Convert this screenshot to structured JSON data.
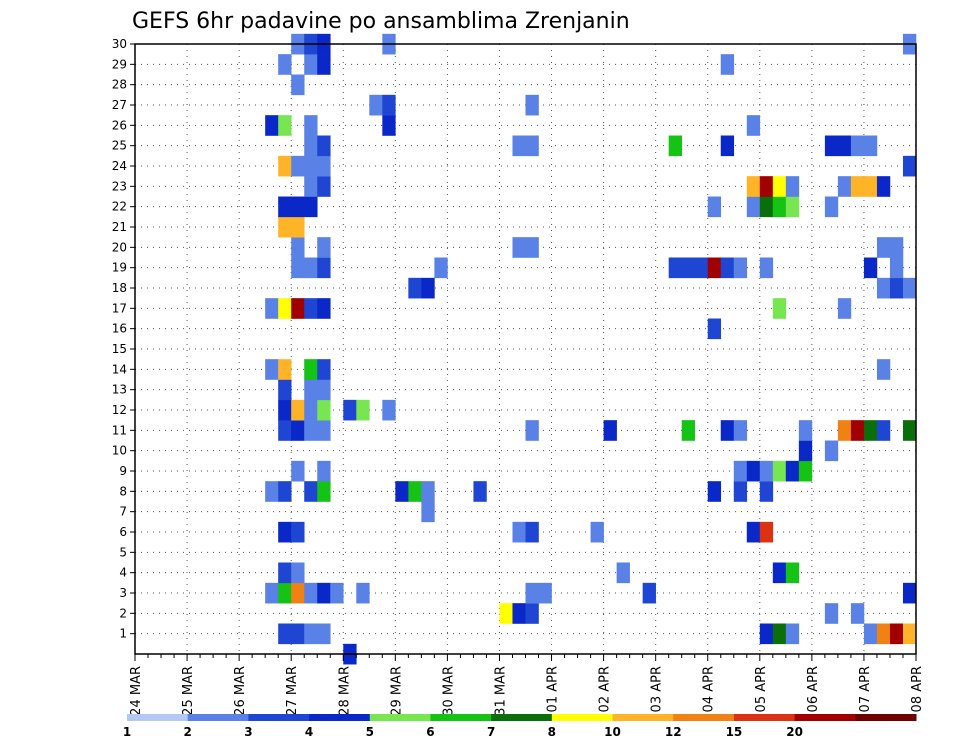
{
  "chart_data": {
    "type": "heatmap",
    "title": "GEFS 6hr padavine po ansamblima Zrenjanin",
    "xlabel": "",
    "ylabel": "",
    "y_ticks": [
      "1",
      "2",
      "3",
      "4",
      "5",
      "6",
      "7",
      "8",
      "9",
      "10",
      "11",
      "12",
      "13",
      "14",
      "15",
      "16",
      "17",
      "18",
      "19",
      "20",
      "21",
      "22",
      "23",
      "24",
      "25",
      "26",
      "27",
      "28",
      "29",
      "30"
    ],
    "x_ticks": [
      "24 MAR",
      "25 MAR",
      "26 MAR",
      "27 MAR",
      "28 MAR",
      "29 MAR",
      "30 MAR",
      "31 MAR",
      "01 APR",
      "02 APR",
      "03 APR",
      "04 APR",
      "05 APR",
      "06 APR",
      "07 APR",
      "08 APR"
    ],
    "time_steps": 60,
    "steps_per_day": 4,
    "xlim": [
      0,
      60
    ],
    "ylim": [
      0,
      30
    ],
    "color_levels": [
      "1",
      "2",
      "3",
      "4",
      "5",
      "6",
      "7",
      "8",
      "10",
      "12",
      "15",
      "20"
    ],
    "color_palette": [
      "#b4c8f5",
      "#5a82e6",
      "#1e46d2",
      "#0a28c8",
      "#78e650",
      "#14c314",
      "#0a6e0a",
      "#ffff00",
      "#ffb428",
      "#f08214",
      "#dc3214",
      "#a00000",
      "#6e0000"
    ],
    "cells": [
      {
        "m": 1,
        "t": 11,
        "c": 2
      },
      {
        "m": 1,
        "t": 12,
        "c": 2
      },
      {
        "m": 1,
        "t": 13,
        "c": 1
      },
      {
        "m": 1,
        "t": 14,
        "c": 1
      },
      {
        "m": 1,
        "t": 48,
        "c": 3
      },
      {
        "m": 1,
        "t": 49,
        "c": 6
      },
      {
        "m": 1,
        "t": 50,
        "c": 1
      },
      {
        "m": 1,
        "t": 56,
        "c": 1
      },
      {
        "m": 1,
        "t": 57,
        "c": 9
      },
      {
        "m": 1,
        "t": 58,
        "c": 11
      },
      {
        "m": 1,
        "t": 59,
        "c": 8
      },
      {
        "m": 2,
        "t": 28,
        "c": 7
      },
      {
        "m": 2,
        "t": 29,
        "c": 3
      },
      {
        "m": 2,
        "t": 30,
        "c": 2
      },
      {
        "m": 2,
        "t": 53,
        "c": 1
      },
      {
        "m": 2,
        "t": 55,
        "c": 1
      },
      {
        "m": 3,
        "t": 10,
        "c": 1
      },
      {
        "m": 3,
        "t": 11,
        "c": 5
      },
      {
        "m": 3,
        "t": 12,
        "c": 9
      },
      {
        "m": 3,
        "t": 13,
        "c": 1
      },
      {
        "m": 3,
        "t": 14,
        "c": 3
      },
      {
        "m": 3,
        "t": 15,
        "c": 1
      },
      {
        "m": 3,
        "t": 17,
        "c": 1
      },
      {
        "m": 3,
        "t": 30,
        "c": 1
      },
      {
        "m": 3,
        "t": 31,
        "c": 1
      },
      {
        "m": 3,
        "t": 39,
        "c": 2
      },
      {
        "m": 3,
        "t": 59,
        "c": 3
      },
      {
        "m": 4,
        "t": 11,
        "c": 2
      },
      {
        "m": 4,
        "t": 12,
        "c": 1
      },
      {
        "m": 4,
        "t": 37,
        "c": 1
      },
      {
        "m": 4,
        "t": 49,
        "c": 3
      },
      {
        "m": 4,
        "t": 50,
        "c": 5
      },
      {
        "m": 6,
        "t": 11,
        "c": 3
      },
      {
        "m": 6,
        "t": 12,
        "c": 2
      },
      {
        "m": 6,
        "t": 29,
        "c": 1
      },
      {
        "m": 6,
        "t": 30,
        "c": 2
      },
      {
        "m": 6,
        "t": 35,
        "c": 1
      },
      {
        "m": 6,
        "t": 47,
        "c": 3
      },
      {
        "m": 6,
        "t": 48,
        "c": 10
      },
      {
        "m": 7,
        "t": 22,
        "c": 1
      },
      {
        "m": 8,
        "t": 10,
        "c": 1
      },
      {
        "m": 8,
        "t": 11,
        "c": 2
      },
      {
        "m": 8,
        "t": 13,
        "c": 2
      },
      {
        "m": 8,
        "t": 14,
        "c": 5
      },
      {
        "m": 8,
        "t": 20,
        "c": 3
      },
      {
        "m": 8,
        "t": 21,
        "c": 5
      },
      {
        "m": 8,
        "t": 22,
        "c": 1
      },
      {
        "m": 8,
        "t": 26,
        "c": 2
      },
      {
        "m": 8,
        "t": 44,
        "c": 3
      },
      {
        "m": 8,
        "t": 46,
        "c": 2
      },
      {
        "m": 8,
        "t": 48,
        "c": 2
      },
      {
        "m": 9,
        "t": 12,
        "c": 1
      },
      {
        "m": 9,
        "t": 14,
        "c": 1
      },
      {
        "m": 9,
        "t": 46,
        "c": 1
      },
      {
        "m": 9,
        "t": 47,
        "c": 3
      },
      {
        "m": 9,
        "t": 48,
        "c": 1
      },
      {
        "m": 9,
        "t": 49,
        "c": 4
      },
      {
        "m": 9,
        "t": 50,
        "c": 3
      },
      {
        "m": 9,
        "t": 51,
        "c": 5
      },
      {
        "m": 10,
        "t": 51,
        "c": 3
      },
      {
        "m": 10,
        "t": 53,
        "c": 1
      },
      {
        "m": 11,
        "t": 11,
        "c": 2
      },
      {
        "m": 11,
        "t": 12,
        "c": 3
      },
      {
        "m": 11,
        "t": 13,
        "c": 1
      },
      {
        "m": 11,
        "t": 14,
        "c": 1
      },
      {
        "m": 11,
        "t": 30,
        "c": 1
      },
      {
        "m": 11,
        "t": 36,
        "c": 3
      },
      {
        "m": 11,
        "t": 42,
        "c": 5
      },
      {
        "m": 11,
        "t": 45,
        "c": 3
      },
      {
        "m": 11,
        "t": 46,
        "c": 1
      },
      {
        "m": 11,
        "t": 51,
        "c": 1
      },
      {
        "m": 11,
        "t": 54,
        "c": 9
      },
      {
        "m": 11,
        "t": 55,
        "c": 11
      },
      {
        "m": 11,
        "t": 56,
        "c": 6
      },
      {
        "m": 11,
        "t": 57,
        "c": 2
      },
      {
        "m": 11,
        "t": 59,
        "c": 6
      },
      {
        "m": 12,
        "t": 11,
        "c": 3
      },
      {
        "m": 12,
        "t": 12,
        "c": 8
      },
      {
        "m": 12,
        "t": 13,
        "c": 1
      },
      {
        "m": 12,
        "t": 14,
        "c": 4
      },
      {
        "m": 12,
        "t": 16,
        "c": 2
      },
      {
        "m": 12,
        "t": 17,
        "c": 4
      },
      {
        "m": 12,
        "t": 19,
        "c": 1
      },
      {
        "m": 13,
        "t": 11,
        "c": 2
      },
      {
        "m": 13,
        "t": 13,
        "c": 1
      },
      {
        "m": 13,
        "t": 14,
        "c": 1
      },
      {
        "m": 14,
        "t": 10,
        "c": 1
      },
      {
        "m": 14,
        "t": 11,
        "c": 8
      },
      {
        "m": 14,
        "t": 13,
        "c": 5
      },
      {
        "m": 14,
        "t": 14,
        "c": 2
      },
      {
        "m": 14,
        "t": 57,
        "c": 1
      },
      {
        "m": 16,
        "t": 44,
        "c": 2
      },
      {
        "m": 17,
        "t": 10,
        "c": 1
      },
      {
        "m": 17,
        "t": 11,
        "c": 7
      },
      {
        "m": 17,
        "t": 12,
        "c": 11
      },
      {
        "m": 17,
        "t": 13,
        "c": 2
      },
      {
        "m": 17,
        "t": 14,
        "c": 3
      },
      {
        "m": 17,
        "t": 49,
        "c": 4
      },
      {
        "m": 17,
        "t": 54,
        "c": 1
      },
      {
        "m": 18,
        "t": 21,
        "c": 2
      },
      {
        "m": 18,
        "t": 22,
        "c": 3
      },
      {
        "m": 18,
        "t": 57,
        "c": 1
      },
      {
        "m": 18,
        "t": 58,
        "c": 2
      },
      {
        "m": 18,
        "t": 59,
        "c": 1
      },
      {
        "m": 19,
        "t": 12,
        "c": 1
      },
      {
        "m": 19,
        "t": 13,
        "c": 1
      },
      {
        "m": 19,
        "t": 14,
        "c": 2
      },
      {
        "m": 19,
        "t": 23,
        "c": 1
      },
      {
        "m": 19,
        "t": 41,
        "c": 2
      },
      {
        "m": 19,
        "t": 42,
        "c": 2
      },
      {
        "m": 19,
        "t": 43,
        "c": 2
      },
      {
        "m": 19,
        "t": 44,
        "c": 11
      },
      {
        "m": 19,
        "t": 45,
        "c": 2
      },
      {
        "m": 19,
        "t": 46,
        "c": 1
      },
      {
        "m": 19,
        "t": 48,
        "c": 1
      },
      {
        "m": 19,
        "t": 56,
        "c": 3
      },
      {
        "m": 19,
        "t": 58,
        "c": 1
      },
      {
        "m": 20,
        "t": 12,
        "c": 1
      },
      {
        "m": 20,
        "t": 14,
        "c": 1
      },
      {
        "m": 20,
        "t": 29,
        "c": 1
      },
      {
        "m": 20,
        "t": 30,
        "c": 1
      },
      {
        "m": 20,
        "t": 57,
        "c": 1
      },
      {
        "m": 20,
        "t": 58,
        "c": 1
      },
      {
        "m": 21,
        "t": 11,
        "c": 8
      },
      {
        "m": 21,
        "t": 12,
        "c": 8
      },
      {
        "m": 22,
        "t": 11,
        "c": 3
      },
      {
        "m": 22,
        "t": 12,
        "c": 3
      },
      {
        "m": 22,
        "t": 13,
        "c": 3
      },
      {
        "m": 22,
        "t": 44,
        "c": 1
      },
      {
        "m": 22,
        "t": 47,
        "c": 1
      },
      {
        "m": 22,
        "t": 48,
        "c": 6
      },
      {
        "m": 22,
        "t": 49,
        "c": 5
      },
      {
        "m": 22,
        "t": 50,
        "c": 4
      },
      {
        "m": 22,
        "t": 53,
        "c": 1
      },
      {
        "m": 23,
        "t": 13,
        "c": 1
      },
      {
        "m": 23,
        "t": 14,
        "c": 2
      },
      {
        "m": 23,
        "t": 47,
        "c": 8
      },
      {
        "m": 23,
        "t": 48,
        "c": 11
      },
      {
        "m": 23,
        "t": 49,
        "c": 7
      },
      {
        "m": 23,
        "t": 50,
        "c": 1
      },
      {
        "m": 23,
        "t": 54,
        "c": 1
      },
      {
        "m": 23,
        "t": 55,
        "c": 8
      },
      {
        "m": 23,
        "t": 56,
        "c": 8
      },
      {
        "m": 23,
        "t": 57,
        "c": 3
      },
      {
        "m": 24,
        "t": 11,
        "c": 8
      },
      {
        "m": 24,
        "t": 12,
        "c": 1
      },
      {
        "m": 24,
        "t": 13,
        "c": 1
      },
      {
        "m": 24,
        "t": 14,
        "c": 1
      },
      {
        "m": 24,
        "t": 59,
        "c": 2
      },
      {
        "m": 25,
        "t": 13,
        "c": 1
      },
      {
        "m": 25,
        "t": 14,
        "c": 2
      },
      {
        "m": 25,
        "t": 29,
        "c": 1
      },
      {
        "m": 25,
        "t": 30,
        "c": 1
      },
      {
        "m": 25,
        "t": 41,
        "c": 5
      },
      {
        "m": 25,
        "t": 45,
        "c": 3
      },
      {
        "m": 25,
        "t": 53,
        "c": 3
      },
      {
        "m": 25,
        "t": 54,
        "c": 3
      },
      {
        "m": 25,
        "t": 55,
        "c": 1
      },
      {
        "m": 25,
        "t": 56,
        "c": 1
      },
      {
        "m": 26,
        "t": 10,
        "c": 3
      },
      {
        "m": 26,
        "t": 11,
        "c": 4
      },
      {
        "m": 26,
        "t": 13,
        "c": 1
      },
      {
        "m": 26,
        "t": 19,
        "c": 3
      },
      {
        "m": 26,
        "t": 47,
        "c": 1
      },
      {
        "m": 27,
        "t": 18,
        "c": 1
      },
      {
        "m": 27,
        "t": 19,
        "c": 2
      },
      {
        "m": 27,
        "t": 30,
        "c": 1
      },
      {
        "m": 28,
        "t": 12,
        "c": 1
      },
      {
        "m": 29,
        "t": 11,
        "c": 1
      },
      {
        "m": 29,
        "t": 13,
        "c": 1
      },
      {
        "m": 29,
        "t": 14,
        "c": 3
      },
      {
        "m": 29,
        "t": 45,
        "c": 1
      },
      {
        "m": 30,
        "t": 12,
        "c": 1
      },
      {
        "m": 30,
        "t": 13,
        "c": 2
      },
      {
        "m": 30,
        "t": 14,
        "c": 3
      },
      {
        "m": 30,
        "t": 19,
        "c": 1
      },
      {
        "m": 30,
        "t": 59,
        "c": 1
      },
      {
        "m": 0,
        "t": 16,
        "c": 3
      }
    ]
  }
}
